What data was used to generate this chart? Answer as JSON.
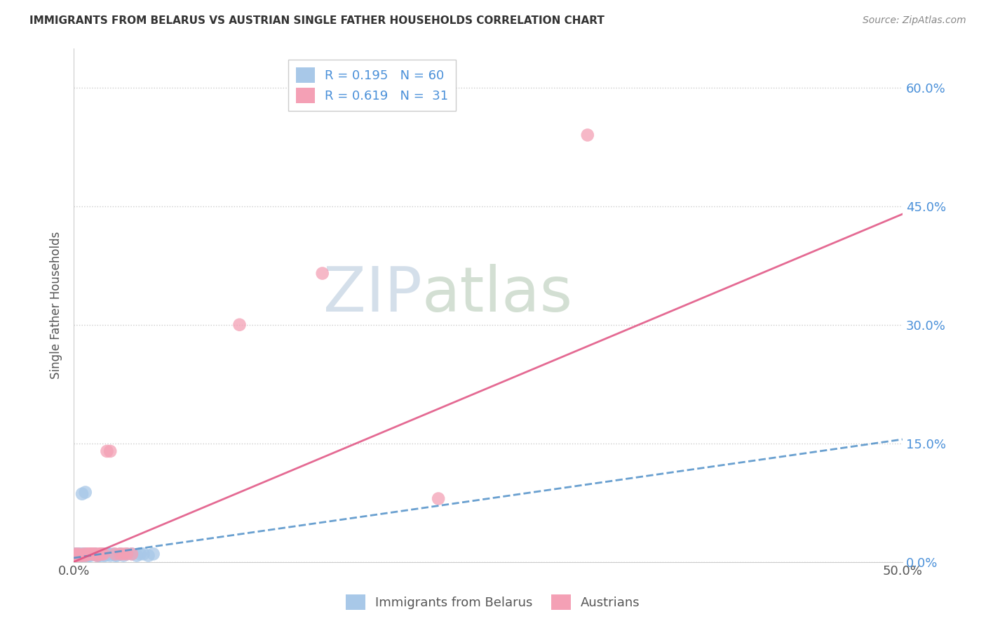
{
  "title": "IMMIGRANTS FROM BELARUS VS AUSTRIAN SINGLE FATHER HOUSEHOLDS CORRELATION CHART",
  "source": "Source: ZipAtlas.com",
  "ylabel": "Single Father Households",
  "xlim": [
    0.0,
    0.5
  ],
  "ylim": [
    0.0,
    0.65
  ],
  "ytick_vals": [
    0.0,
    0.15,
    0.3,
    0.45,
    0.6
  ],
  "ytick_labels_right": [
    "0.0%",
    "15.0%",
    "30.0%",
    "45.0%",
    "60.0%"
  ],
  "xtick_vals": [
    0.0,
    0.1,
    0.2,
    0.3,
    0.4,
    0.5
  ],
  "xtick_labels": [
    "0.0%",
    "",
    "",
    "",
    "",
    "50.0%"
  ],
  "legend_label1": "Immigrants from Belarus",
  "legend_label2": "Austrians",
  "R_belarus": 0.195,
  "N_belarus": 60,
  "R_austrians": 0.619,
  "N_austrians": 31,
  "color_blue": "#a8c8e8",
  "color_pink": "#f4a0b5",
  "color_blue_line": "#5090c8",
  "color_pink_line": "#e05080",
  "background": "#ffffff",
  "watermark_zip": "ZIP",
  "watermark_atlas": "atlas",
  "blue_points_x": [
    0.0,
    0.0,
    0.001,
    0.001,
    0.001,
    0.001,
    0.002,
    0.002,
    0.002,
    0.002,
    0.003,
    0.003,
    0.003,
    0.004,
    0.004,
    0.005,
    0.005,
    0.006,
    0.006,
    0.007,
    0.007,
    0.008,
    0.008,
    0.009,
    0.01,
    0.01,
    0.011,
    0.012,
    0.013,
    0.014,
    0.015,
    0.016,
    0.017,
    0.018,
    0.019,
    0.02,
    0.021,
    0.022,
    0.024,
    0.025,
    0.026,
    0.028,
    0.03,
    0.032,
    0.035,
    0.038,
    0.04,
    0.042,
    0.045,
    0.048,
    0.005,
    0.006,
    0.007,
    0.009,
    0.011,
    0.013,
    0.015,
    0.017,
    0.019,
    0.021
  ],
  "blue_points_y": [
    0.005,
    0.008,
    0.008,
    0.01,
    0.005,
    0.008,
    0.008,
    0.01,
    0.006,
    0.01,
    0.008,
    0.01,
    0.006,
    0.01,
    0.008,
    0.008,
    0.086,
    0.008,
    0.01,
    0.008,
    0.088,
    0.01,
    0.008,
    0.008,
    0.008,
    0.01,
    0.01,
    0.01,
    0.01,
    0.008,
    0.008,
    0.008,
    0.01,
    0.008,
    0.01,
    0.01,
    0.01,
    0.008,
    0.01,
    0.008,
    0.008,
    0.01,
    0.008,
    0.01,
    0.01,
    0.008,
    0.01,
    0.01,
    0.008,
    0.01,
    0.008,
    0.01,
    0.01,
    0.008,
    0.01,
    0.01,
    0.008,
    0.01,
    0.008,
    0.01
  ],
  "pink_points_x": [
    0.0,
    0.001,
    0.001,
    0.002,
    0.003,
    0.004,
    0.005,
    0.006,
    0.007,
    0.008,
    0.009,
    0.01,
    0.011,
    0.012,
    0.013,
    0.014,
    0.015,
    0.016,
    0.017,
    0.018,
    0.02,
    0.022,
    0.025,
    0.028,
    0.03,
    0.032,
    0.035,
    0.1,
    0.15,
    0.22,
    0.31
  ],
  "pink_points_y": [
    0.005,
    0.008,
    0.01,
    0.008,
    0.01,
    0.008,
    0.008,
    0.01,
    0.008,
    0.01,
    0.01,
    0.01,
    0.01,
    0.01,
    0.01,
    0.008,
    0.01,
    0.01,
    0.01,
    0.01,
    0.14,
    0.14,
    0.01,
    0.01,
    0.01,
    0.01,
    0.01,
    0.3,
    0.365,
    0.08,
    0.54
  ],
  "pink_line_x0": 0.0,
  "pink_line_y0": 0.0,
  "pink_line_x1": 0.5,
  "pink_line_y1": 0.44,
  "blue_line_x0": 0.0,
  "blue_line_y0": 0.005,
  "blue_line_x1": 0.5,
  "blue_line_y1": 0.155
}
